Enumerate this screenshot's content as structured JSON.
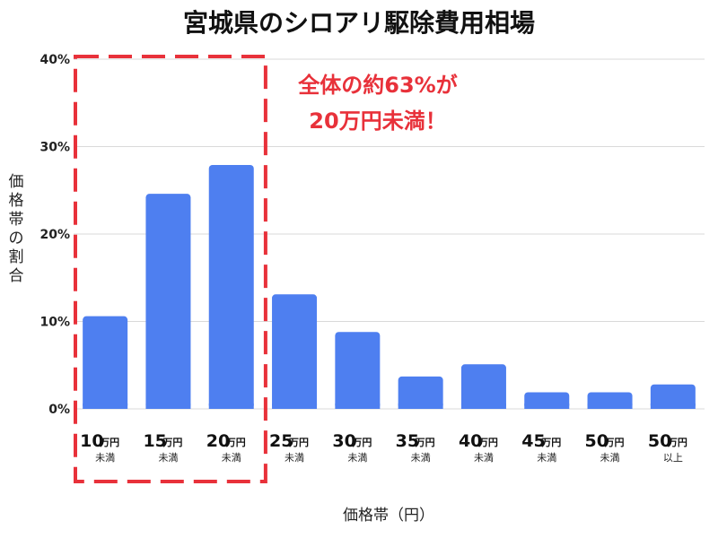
{
  "chart_data": {
    "type": "bar",
    "title": "宮城県のシロアリ駆除費用相場",
    "xlabel": "価格帯（円）",
    "ylabel": "価格帯の割合",
    "ylim": [
      0,
      40
    ],
    "yticks": [
      "0%",
      "10%",
      "20%",
      "30%",
      "40%"
    ],
    "grid": true,
    "categories": [
      {
        "main": "10",
        "unit": "万円",
        "sub": "未満"
      },
      {
        "main": "15",
        "unit": "万円",
        "sub": "未満"
      },
      {
        "main": "20",
        "unit": "万円",
        "sub": "未満"
      },
      {
        "main": "25",
        "unit": "万円",
        "sub": "未満"
      },
      {
        "main": "30",
        "unit": "万円",
        "sub": "未満"
      },
      {
        "main": "35",
        "unit": "万円",
        "sub": "未満"
      },
      {
        "main": "40",
        "unit": "万円",
        "sub": "未満"
      },
      {
        "main": "45",
        "unit": "万円",
        "sub": "未満"
      },
      {
        "main": "50",
        "unit": "万円",
        "sub": "未満"
      },
      {
        "main": "50",
        "unit": "万円",
        "sub": "以上"
      }
    ],
    "values": [
      10.6,
      24.6,
      27.9,
      13.1,
      8.8,
      3.7,
      5.1,
      1.9,
      1.9,
      2.8
    ],
    "annotation": {
      "lines": [
        "全体の約63%が",
        "20万円未満！"
      ],
      "highlight_range": [
        0,
        2
      ]
    },
    "colors": {
      "bar": "#4e7ff0",
      "highlight": "#e8313a",
      "grid": "#d9d9d9"
    }
  }
}
